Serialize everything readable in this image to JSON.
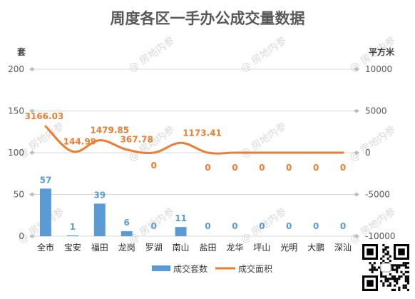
{
  "chart_data": {
    "type": "bar",
    "title": "周度各区一手办公成交量数据",
    "categories": [
      "全市",
      "宝安",
      "福田",
      "龙岗",
      "罗湖",
      "南山",
      "盐田",
      "龙华",
      "坪山",
      "光明",
      "大鹏",
      "深汕"
    ],
    "y_left_label": "套",
    "y_right_label": "平方米",
    "y_left_ticks": [
      "0",
      "50",
      "100",
      "150",
      "200"
    ],
    "y_right_ticks": [
      "-10000",
      "-5000",
      "0",
      "5000",
      "10000"
    ],
    "ylim_left": [
      0,
      200
    ],
    "ylim_right": [
      -10000,
      10000
    ],
    "series": [
      {
        "name": "成交套数",
        "type": "bar",
        "axis": "left",
        "color": "#5b9bd5",
        "values": [
          57,
          1,
          39,
          6,
          0,
          11,
          0,
          0,
          0,
          0,
          0,
          0
        ],
        "labels": [
          "57",
          "1",
          "39",
          "6",
          "0",
          "11",
          "0",
          "0",
          "0",
          "0",
          "0",
          "0"
        ]
      },
      {
        "name": "成交面积",
        "type": "line",
        "axis": "right",
        "color": "#ed7d31",
        "values": [
          3166.03,
          144.99,
          1479.85,
          367.78,
          0,
          1173.41,
          0,
          0,
          0,
          0,
          0,
          0
        ],
        "labels": [
          "3166.03",
          "144.99",
          "1479.85",
          "367.78",
          "0",
          "1173.41",
          "0",
          "0",
          "0",
          "0",
          "0",
          "0"
        ]
      }
    ],
    "grid": true,
    "legend": "bottom"
  },
  "watermark": "@ 房地内参",
  "colors": {
    "bar": "#5b9bd5",
    "line": "#ed7d31",
    "grid": "#d9d9d9",
    "bar_label": "#5b9bd5",
    "line_label": "#ed7d31"
  }
}
